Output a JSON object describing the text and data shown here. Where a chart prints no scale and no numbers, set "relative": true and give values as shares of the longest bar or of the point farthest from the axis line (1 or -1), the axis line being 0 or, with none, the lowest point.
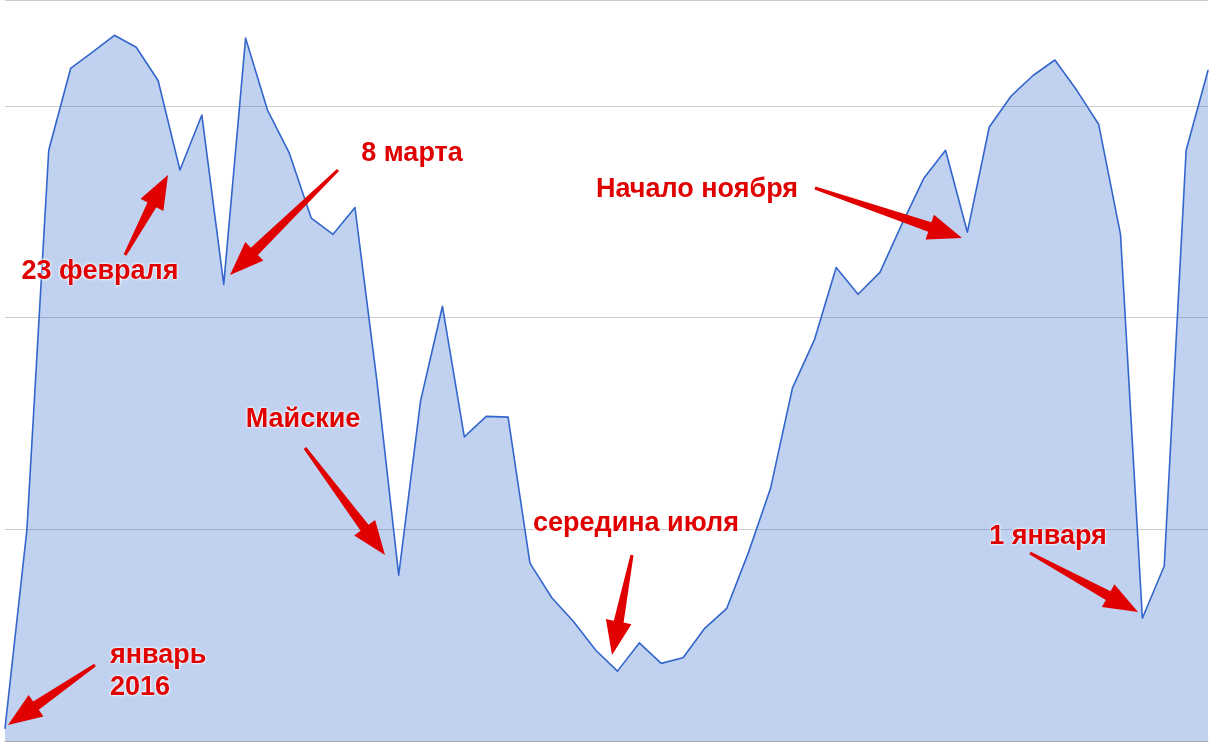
{
  "chart_data": {
    "type": "area",
    "relative": true,
    "grid": "y",
    "marker": "none",
    "line_style": "solid",
    "categories": [
      null,
      null,
      null,
      null,
      null,
      null,
      null,
      null,
      null,
      null,
      null,
      null,
      null,
      null,
      null,
      null,
      null,
      null,
      null,
      null,
      null,
      null,
      null,
      null,
      null,
      null,
      null,
      null,
      null,
      null,
      null,
      null,
      null,
      null,
      null,
      null,
      null,
      null,
      null,
      null,
      null,
      null,
      null,
      null,
      null,
      null,
      null,
      null,
      null,
      null,
      null,
      null,
      null,
      null,
      null,
      null
    ],
    "series": [
      {
        "color": "#3366cc",
        "values": [
          0.018,
          0.299,
          0.837,
          0.953,
          0.976,
          1,
          0.983,
          0.936,
          0.809,
          0.887,
          0.647,
          0.996,
          0.894,
          0.833,
          0.741,
          0.718,
          0.756,
          0.511,
          0.235,
          0.482,
          0.616,
          0.431,
          0.46,
          0.459,
          0.252,
          0.203,
          0.169,
          0.129,
          0.099,
          0.139,
          0.11,
          0.118,
          0.16,
          0.188,
          0.268,
          0.358,
          0.5,
          0.568,
          0.671,
          0.633,
          0.664,
          0.732,
          0.797,
          0.837,
          0.721,
          0.87,
          0.914,
          0.943,
          0.965,
          0.922,
          0.874,
          0.718,
          0.174,
          0.248,
          0.837,
          0.95
        ]
      }
    ],
    "annotations": [
      "январь 2016",
      "23 февраля",
      "8 марта",
      "Майские",
      "середина июля",
      "Начало ноября",
      "1 января"
    ]
  }
}
